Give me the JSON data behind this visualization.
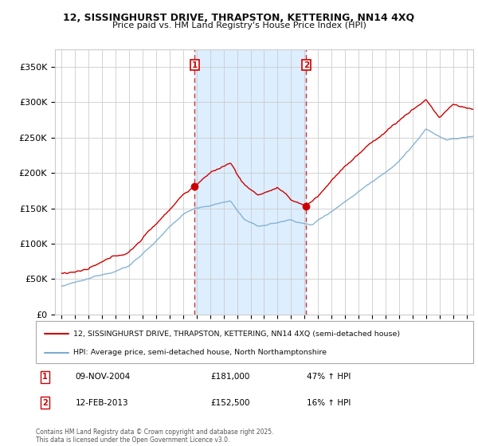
{
  "title": "12, SISSINGHURST DRIVE, THRAPSTON, KETTERING, NN14 4XQ",
  "subtitle": "Price paid vs. HM Land Registry's House Price Index (HPI)",
  "legend_line1": "12, SISSINGHURST DRIVE, THRAPSTON, KETTERING, NN14 4XQ (semi-detached house)",
  "legend_line2": "HPI: Average price, semi-detached house, North Northamptonshire",
  "footer": "Contains HM Land Registry data © Crown copyright and database right 2025.\nThis data is licensed under the Open Government Licence v3.0.",
  "marker1_label": "1",
  "marker1_date": "09-NOV-2004",
  "marker1_price": "£181,000",
  "marker1_hpi": "47% ↑ HPI",
  "marker1_x_year": 2004.86,
  "marker1_y": 181000,
  "marker2_label": "2",
  "marker2_date": "12-FEB-2013",
  "marker2_price": "£152,500",
  "marker2_hpi": "16% ↑ HPI",
  "marker2_x_year": 2013.12,
  "marker2_y": 152500,
  "ylim": [
    0,
    375000
  ],
  "yticks": [
    0,
    50000,
    100000,
    150000,
    200000,
    250000,
    300000,
    350000
  ],
  "ytick_labels": [
    "£0",
    "£50K",
    "£100K",
    "£150K",
    "£200K",
    "£250K",
    "£300K",
    "£350K"
  ],
  "red_color": "#cc0000",
  "blue_color": "#7aadcf",
  "shaded_color": "#ddeeff",
  "vline_color": "#cc3333",
  "grid_color": "#cccccc",
  "xlim_start": 1994.5,
  "xlim_end": 2025.5,
  "bg_color": "#ffffff"
}
